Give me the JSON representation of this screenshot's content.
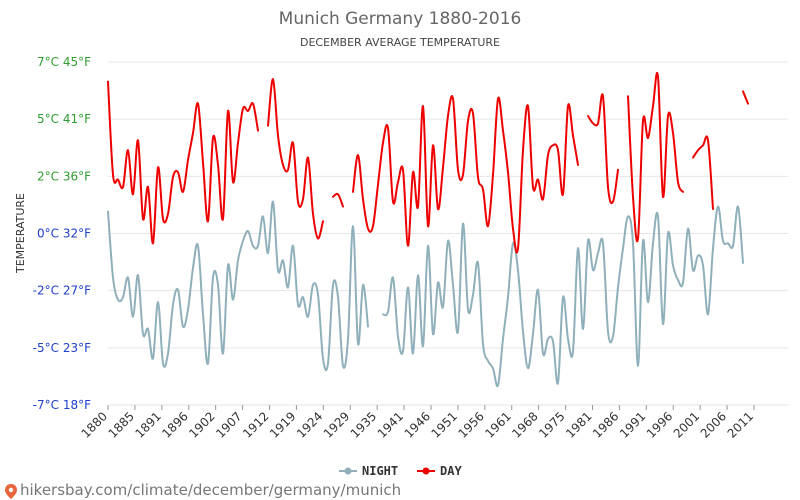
{
  "chart_data": {
    "type": "line",
    "title": "Munich Germany 1880-2016",
    "subtitle": "DECEMBER AVERAGE TEMPERATURE",
    "ylabel": "TEMPERATURE",
    "ylim": [
      -7,
      7
    ],
    "xlim": [
      1880,
      2016
    ],
    "y_ticks": [
      {
        "value": 7,
        "label": "7°C 45°F",
        "color": "#2e9e2e"
      },
      {
        "value": 4.667,
        "label": "5°C 41°F",
        "color": "#2e9e2e"
      },
      {
        "value": 2.333,
        "label": "2°C 36°F",
        "color": "#2e9e2e"
      },
      {
        "value": 0,
        "label": "0°C 32°F",
        "color": "#1f3fcc"
      },
      {
        "value": -2.333,
        "label": "-2°C 27°F",
        "color": "#1f3fcc"
      },
      {
        "value": -4.667,
        "label": "-5°C 23°F",
        "color": "#1f3fcc"
      },
      {
        "value": -7,
        "label": "-7°C 18°F",
        "color": "#1f3fcc"
      }
    ],
    "x_tick_labels": [
      "1880",
      "1885",
      "1891",
      "1896",
      "1902",
      "1907",
      "1912",
      "1919",
      "1924",
      "1929",
      "1935",
      "1941",
      "1946",
      "1951",
      "1956",
      "1961",
      "1968",
      "1975",
      "1981",
      "1986",
      "1991",
      "1996",
      "2001",
      "2006",
      "2011"
    ],
    "grid": true,
    "legend_position": "bottom",
    "series": [
      {
        "name": "NIGHT",
        "color": "#8fb0bb",
        "points": [
          [
            1880,
            0.9
          ],
          [
            1881,
            -1.8
          ],
          [
            1882,
            -2.7
          ],
          [
            1883,
            -2.6
          ],
          [
            1884,
            -1.8
          ],
          [
            1885,
            -3.4
          ],
          [
            1886,
            -1.7
          ],
          [
            1887,
            -4.1
          ],
          [
            1888,
            -3.9
          ],
          [
            1889,
            -5.1
          ],
          [
            1890,
            -2.8
          ],
          [
            1891,
            -5.3
          ],
          [
            1892,
            -4.9
          ],
          [
            1893,
            -2.9
          ],
          [
            1894,
            -2.3
          ],
          [
            1895,
            -3.8
          ],
          [
            1896,
            -3.1
          ],
          [
            1897,
            -1.4
          ],
          [
            1898,
            -0.5
          ],
          [
            1899,
            -3.3
          ],
          [
            1900,
            -5.3
          ],
          [
            1901,
            -1.8
          ],
          [
            1902,
            -2.1
          ],
          [
            1903,
            -4.9
          ],
          [
            1904,
            -1.3
          ],
          [
            1905,
            -2.7
          ],
          [
            1906,
            -1.1
          ],
          [
            1907,
            -0.3
          ],
          [
            1908,
            0.1
          ],
          [
            1909,
            -0.5
          ],
          [
            1910,
            -0.5
          ],
          [
            1911,
            0.7
          ],
          [
            1912,
            -0.8
          ],
          [
            1913,
            1.3
          ],
          [
            1914,
            -1.5
          ],
          [
            1915,
            -1.1
          ],
          [
            1916,
            -2.2
          ],
          [
            1917,
            -0.5
          ],
          [
            1918,
            -2.9
          ],
          [
            1919,
            -2.6
          ],
          [
            1920,
            -3.4
          ],
          [
            1921,
            -2.1
          ],
          [
            1922,
            -2.5
          ],
          [
            1923,
            -5.1
          ],
          [
            1924,
            -5.3
          ],
          [
            1925,
            -2.1
          ],
          [
            1926,
            -2.6
          ],
          [
            1927,
            -5.4
          ],
          [
            1928,
            -4.3
          ],
          [
            1929,
            0.3
          ],
          [
            1930,
            -4.5
          ],
          [
            1931,
            -2.1
          ],
          [
            1932,
            -3.8
          ],
          null,
          [
            1935,
            -3.3
          ],
          [
            1936,
            -3.2
          ],
          [
            1937,
            -1.8
          ],
          [
            1938,
            -4.2
          ],
          [
            1939,
            -4.8
          ],
          [
            1940,
            -2.2
          ],
          [
            1941,
            -4.9
          ],
          [
            1942,
            -1.7
          ],
          [
            1943,
            -4.6
          ],
          [
            1944,
            -0.5
          ],
          [
            1945,
            -4.1
          ],
          [
            1946,
            -2.0
          ],
          [
            1947,
            -3.0
          ],
          [
            1948,
            -0.3
          ],
          [
            1949,
            -2.1
          ],
          [
            1950,
            -4.0
          ],
          [
            1951,
            0.4
          ],
          [
            1952,
            -3.1
          ],
          [
            1953,
            -2.5
          ],
          [
            1954,
            -1.2
          ],
          [
            1955,
            -4.5
          ],
          [
            1956,
            -5.2
          ],
          [
            1957,
            -5.5
          ],
          [
            1958,
            -6.2
          ],
          [
            1959,
            -4.3
          ],
          [
            1960,
            -2.6
          ],
          [
            1961,
            -0.4
          ],
          [
            1962,
            -1.5
          ],
          [
            1963,
            -4.0
          ],
          [
            1964,
            -5.5
          ],
          [
            1965,
            -4.1
          ],
          [
            1966,
            -2.3
          ],
          [
            1967,
            -4.9
          ],
          [
            1968,
            -4.3
          ],
          [
            1969,
            -4.4
          ],
          [
            1970,
            -6.1
          ],
          [
            1971,
            -2.6
          ],
          [
            1972,
            -4.3
          ],
          [
            1973,
            -4.8
          ],
          [
            1974,
            -0.6
          ],
          [
            1975,
            -3.9
          ],
          [
            1976,
            -0.3
          ],
          [
            1977,
            -1.5
          ],
          [
            1978,
            -0.8
          ],
          [
            1979,
            -0.4
          ],
          [
            1980,
            -4.0
          ],
          [
            1981,
            -4.2
          ],
          [
            1982,
            -2.2
          ],
          [
            1983,
            -0.6
          ],
          [
            1984,
            0.7
          ],
          [
            1985,
            -0.4
          ],
          [
            1986,
            -5.4
          ],
          [
            1987,
            -0.3
          ],
          [
            1988,
            -2.8
          ],
          [
            1989,
            -0.4
          ],
          [
            1990,
            0.7
          ],
          [
            1991,
            -3.7
          ],
          [
            1992,
            0.0
          ],
          [
            1993,
            -1.3
          ],
          [
            1994,
            -1.9
          ],
          [
            1995,
            -2.0
          ],
          [
            1996,
            0.2
          ],
          [
            1997,
            -1.5
          ],
          [
            1998,
            -0.9
          ],
          [
            1999,
            -1.3
          ],
          [
            2000,
            -3.3
          ],
          [
            2001,
            -0.6
          ],
          [
            2002,
            1.1
          ],
          [
            2003,
            -0.3
          ],
          [
            2004,
            -0.4
          ],
          [
            2005,
            -0.5
          ],
          [
            2006,
            1.1
          ],
          [
            2007,
            -1.2
          ]
        ]
      },
      {
        "name": "DAY",
        "color": "#ee0000",
        "points": [
          [
            1880,
            6.2
          ],
          [
            1881,
            2.4
          ],
          [
            1882,
            2.2
          ],
          [
            1883,
            1.9
          ],
          [
            1884,
            3.4
          ],
          [
            1885,
            1.6
          ],
          [
            1886,
            3.8
          ],
          [
            1887,
            0.6
          ],
          [
            1888,
            1.9
          ],
          [
            1889,
            -0.4
          ],
          [
            1890,
            2.7
          ],
          [
            1891,
            0.6
          ],
          [
            1892,
            0.8
          ],
          [
            1893,
            2.3
          ],
          [
            1894,
            2.5
          ],
          [
            1895,
            1.7
          ],
          [
            1896,
            3.0
          ],
          [
            1897,
            4.1
          ],
          [
            1898,
            5.3
          ],
          [
            1899,
            2.9
          ],
          [
            1900,
            0.5
          ],
          [
            1901,
            3.9
          ],
          [
            1902,
            2.8
          ],
          [
            1903,
            0.6
          ],
          [
            1904,
            5.0
          ],
          [
            1905,
            2.1
          ],
          [
            1906,
            3.7
          ],
          [
            1907,
            5.1
          ],
          [
            1908,
            5.0
          ],
          [
            1909,
            5.3
          ],
          [
            1910,
            4.2
          ],
          null,
          [
            1912,
            4.4
          ],
          [
            1913,
            6.3
          ],
          [
            1914,
            4.0
          ],
          [
            1915,
            2.8
          ],
          [
            1916,
            2.6
          ],
          [
            1917,
            3.7
          ],
          [
            1918,
            1.3
          ],
          [
            1919,
            1.4
          ],
          [
            1920,
            3.1
          ],
          [
            1921,
            0.8
          ],
          [
            1922,
            -0.2
          ],
          [
            1923,
            0.5
          ],
          null,
          [
            1925,
            1.5
          ],
          [
            1926,
            1.6
          ],
          [
            1927,
            1.1
          ],
          null,
          [
            1929,
            1.7
          ],
          [
            1930,
            3.2
          ],
          [
            1931,
            1.4
          ],
          [
            1932,
            0.2
          ],
          [
            1933,
            0.3
          ],
          [
            1934,
            2.0
          ],
          [
            1935,
            3.7
          ],
          [
            1936,
            4.3
          ],
          [
            1937,
            1.3
          ],
          [
            1938,
            2.1
          ],
          [
            1939,
            2.6
          ],
          [
            1940,
            -0.5
          ],
          [
            1941,
            2.5
          ],
          [
            1942,
            1.1
          ],
          [
            1943,
            5.2
          ],
          [
            1944,
            0.3
          ],
          [
            1945,
            3.6
          ],
          [
            1946,
            1.0
          ],
          [
            1947,
            2.7
          ],
          [
            1948,
            4.8
          ],
          [
            1949,
            5.5
          ],
          [
            1950,
            2.6
          ],
          [
            1951,
            2.4
          ],
          [
            1952,
            4.6
          ],
          [
            1953,
            4.9
          ],
          [
            1954,
            2.3
          ],
          [
            1955,
            1.8
          ],
          [
            1956,
            0.3
          ],
          [
            1957,
            2.4
          ],
          [
            1958,
            5.5
          ],
          [
            1959,
            4.2
          ],
          [
            1960,
            2.5
          ],
          [
            1961,
            0.2
          ],
          [
            1962,
            -0.6
          ],
          [
            1963,
            3.4
          ],
          [
            1964,
            5.2
          ],
          [
            1965,
            1.9
          ],
          [
            1966,
            2.2
          ],
          [
            1967,
            1.4
          ],
          [
            1968,
            3.2
          ],
          [
            1969,
            3.6
          ],
          [
            1970,
            3.4
          ],
          [
            1971,
            1.6
          ],
          [
            1972,
            5.2
          ],
          [
            1973,
            4.0
          ],
          [
            1974,
            2.8
          ],
          null,
          [
            1976,
            4.8
          ],
          [
            1977,
            4.5
          ],
          [
            1978,
            4.5
          ],
          [
            1979,
            5.6
          ],
          [
            1980,
            1.9
          ],
          [
            1981,
            1.3
          ],
          [
            1982,
            2.6
          ],
          null,
          [
            1984,
            5.6
          ],
          [
            1985,
            1.5
          ],
          [
            1986,
            -0.2
          ],
          [
            1987,
            4.6
          ],
          [
            1988,
            3.9
          ],
          [
            1989,
            5.2
          ],
          [
            1990,
            6.4
          ],
          [
            1991,
            1.5
          ],
          [
            1992,
            4.8
          ],
          [
            1993,
            4.1
          ],
          [
            1994,
            2.1
          ],
          [
            1995,
            1.7
          ],
          null,
          [
            1997,
            3.1
          ],
          [
            1998,
            3.4
          ],
          [
            1999,
            3.6
          ],
          [
            2000,
            3.8
          ],
          [
            2001,
            1.0
          ],
          null,
          [
            2007,
            5.8
          ],
          [
            2008,
            5.3
          ]
        ]
      }
    ]
  },
  "legend": {
    "items": [
      {
        "label": "NIGHT",
        "color": "#8fb0bb"
      },
      {
        "label": "DAY",
        "color": "#ee0000"
      }
    ]
  },
  "footer": {
    "watermark": "hikersbay.com/climate/december/germany/munich"
  }
}
